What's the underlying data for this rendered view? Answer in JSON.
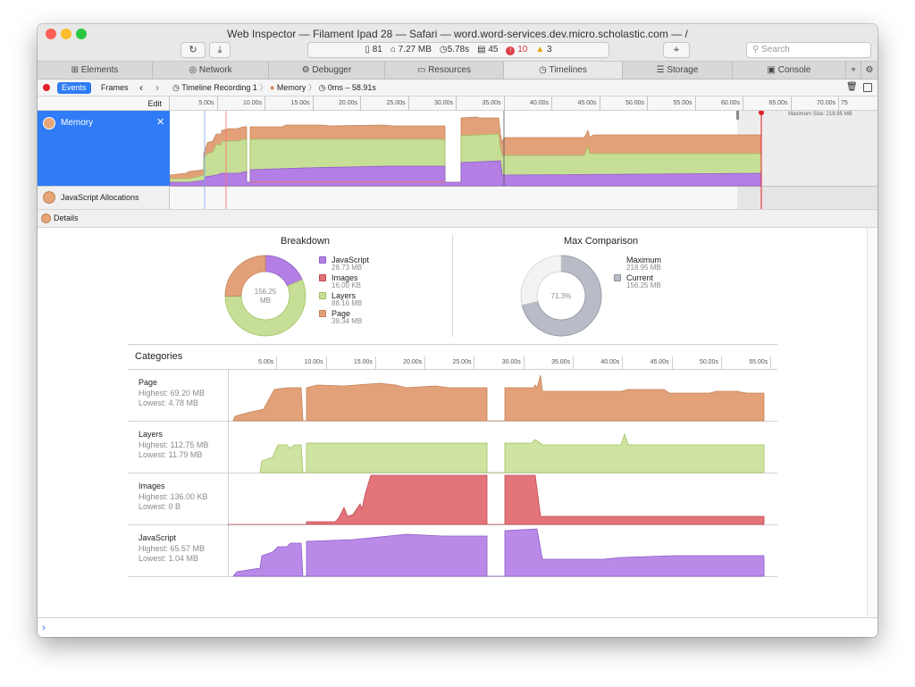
{
  "window": {
    "title": "Web Inspector — Filament Ipad 28 — Safari — word.word-services.dev.micro.scholastic.com — /",
    "dashboard": {
      "resources": "81",
      "size": "7.27 MB",
      "load_time": "5.78s",
      "logs": "45",
      "errors": "10",
      "warnings": "3"
    },
    "search_placeholder": "Search",
    "traffic_colors": [
      "#fe5f57",
      "#febc2e",
      "#28c840"
    ]
  },
  "tabs": [
    {
      "label": "Elements",
      "icon": "elements-icon"
    },
    {
      "label": "Network",
      "icon": "network-icon"
    },
    {
      "label": "Debugger",
      "icon": "debugger-icon"
    },
    {
      "label": "Resources",
      "icon": "resources-icon"
    },
    {
      "label": "Timelines",
      "icon": "timelines-icon",
      "active": true
    },
    {
      "label": "Storage",
      "icon": "storage-icon"
    },
    {
      "label": "Console",
      "icon": "console-icon"
    }
  ],
  "nav": {
    "events_label": "Events",
    "frames_label": "Frames",
    "crumb_recording": "Timeline Recording 1",
    "crumb_memory": "Memory",
    "crumb_range": "0ms – 58.91s"
  },
  "ruler": {
    "edit_label": "Edit",
    "ticks": [
      "5.00s",
      "10.00s",
      "15.00s",
      "20.00s",
      "25.00s",
      "30.00s",
      "35.00s",
      "40.00s",
      "45.00s",
      "50.00s",
      "55.00s",
      "60.00s",
      "65.00s",
      "70.00s",
      "75"
    ]
  },
  "overview": {
    "memory_label": "Memory",
    "js_alloc_label": "JavaScript Allocations",
    "max_size_label": "Maximum Size: 218.95 MB"
  },
  "details_label": "Details",
  "breakdown": {
    "title": "Breakdown",
    "center_value": "156.25",
    "center_unit": "MB",
    "items": [
      {
        "label": "JavaScript",
        "value": "28.73 MB",
        "mb": 28.73,
        "color": "#b47fe4"
      },
      {
        "label": "Images",
        "value": "16.00 KB",
        "mb": 0.016,
        "color": "#e3747a"
      },
      {
        "label": "Layers",
        "value": "88.16 MB",
        "mb": 88.16,
        "color": "#c7de97"
      },
      {
        "label": "Page",
        "value": "39.34 MB",
        "mb": 39.34,
        "color": "#e3a17a"
      }
    ]
  },
  "max_comparison": {
    "title": "Max Comparison",
    "center_value": "71.3%",
    "percent": 71.3,
    "items": [
      {
        "label": "Maximum",
        "value": "218.95 MB",
        "color": "#f3f3f3"
      },
      {
        "label": "Current",
        "value": "156.25 MB",
        "color": "#b7bcc6"
      }
    ]
  },
  "categories": {
    "title": "Categories",
    "ticks": [
      "5.00s",
      "10.00s",
      "15.00s",
      "20.00s",
      "25.00s",
      "30.00s",
      "35.00s",
      "40.00s",
      "45.00s",
      "50.00s",
      "55.00s"
    ],
    "rows": [
      {
        "name": "Page",
        "highest": "Highest: 69.20 MB",
        "lowest": "Lowest: 4.78 MB",
        "color": "#e3a17a",
        "stroke": "#c58257"
      },
      {
        "name": "Layers",
        "highest": "Highest: 112.75 MB",
        "lowest": "Lowest: 11.79 MB",
        "color": "#cfe3a3",
        "stroke": "#9fc15d"
      },
      {
        "name": "Images",
        "highest": "Highest: 136.00 KB",
        "lowest": "Lowest: 0 B",
        "color": "#e3747a",
        "stroke": "#c04a52"
      },
      {
        "name": "JavaScript",
        "highest": "Highest: 65.57 MB",
        "lowest": "Lowest: 1.04 MB",
        "color": "#b98ae8",
        "stroke": "#8e5bc6"
      }
    ]
  },
  "chart_data": [
    {
      "type": "pie",
      "title": "Breakdown",
      "categories": [
        "JavaScript",
        "Images",
        "Layers",
        "Page"
      ],
      "values": [
        28.73,
        0.016,
        88.16,
        39.34
      ]
    },
    {
      "type": "pie",
      "title": "Max Comparison",
      "categories": [
        "Current",
        "Maximum"
      ],
      "values": [
        156.25,
        218.95
      ]
    }
  ]
}
